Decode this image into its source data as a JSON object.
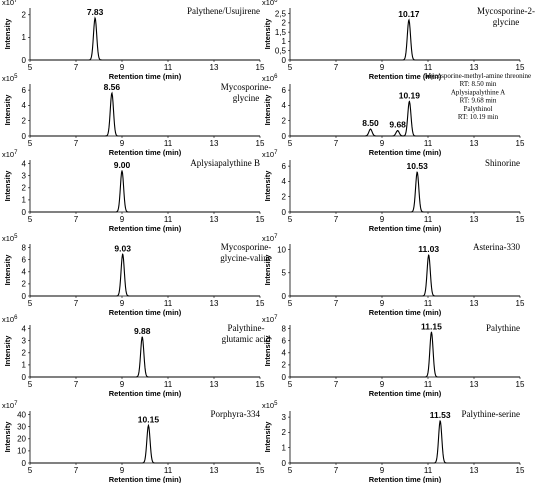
{
  "chart_data": [
    {
      "type": "line",
      "title": [
        "Palythene/Usujirene"
      ],
      "scale": "x10",
      "scale_exp": "7",
      "yticks": [
        "0",
        "1",
        "2"
      ],
      "ylim": [
        0,
        2.3
      ],
      "peaks": [
        {
          "rt": 7.83,
          "height": 1.85,
          "label": "7.83"
        }
      ],
      "xticks": [
        "5",
        "7",
        "9",
        "11",
        "13",
        "15"
      ],
      "xlim": [
        5,
        15
      ],
      "xlabel": "Retention time (min)",
      "ylabel": "Intensity"
    },
    {
      "type": "line",
      "title": [
        "Mycosporine-2-",
        "glycine"
      ],
      "scale": "x10",
      "scale_exp": "6",
      "yticks": [
        "0",
        "0,5",
        "1",
        "1,5",
        "2",
        "2,5"
      ],
      "ylim": [
        0,
        2.8
      ],
      "peaks": [
        {
          "rt": 10.17,
          "height": 2.15,
          "label": "10.17"
        }
      ],
      "xticks": [
        "5",
        "7",
        "9",
        "11",
        "13",
        "15"
      ],
      "xlim": [
        5,
        15
      ],
      "xlabel": "Retention time (min)",
      "ylabel": "Intensity"
    },
    {
      "type": "line",
      "title": [
        "Mycosporine-",
        "glycine"
      ],
      "scale": "x10",
      "scale_exp": "5",
      "yticks": [
        "0",
        "2",
        "4",
        "6"
      ],
      "ylim": [
        0,
        6.8
      ],
      "peaks": [
        {
          "rt": 8.56,
          "height": 5.6,
          "label": "8.56"
        }
      ],
      "xticks": [
        "5",
        "7",
        "9",
        "11",
        "13",
        "15"
      ],
      "xlim": [
        5,
        15
      ],
      "xlabel": "Retention time (min)",
      "ylabel": "Intensity"
    },
    {
      "type": "line",
      "title": [],
      "scale": "x10",
      "scale_exp": "6",
      "yticks": [
        "0",
        "2",
        "4",
        "6"
      ],
      "ylim": [
        0,
        6.8
      ],
      "peaks": [
        {
          "rt": 8.5,
          "height": 0.9,
          "label": "8.50"
        },
        {
          "rt": 9.68,
          "height": 0.7,
          "label": "9.68"
        },
        {
          "rt": 10.19,
          "height": 4.5,
          "label": "10.19"
        }
      ],
      "annotation": [
        "Mycosporine-methyl-amine threonine",
        "RT: 8.50 min",
        "Aplysiapalythine A",
        "RT: 9.68 min",
        "Palythinol",
        "RT: 10.19 min"
      ],
      "xticks": [
        "5",
        "7",
        "9",
        "11",
        "13",
        "15"
      ],
      "xlim": [
        5,
        15
      ],
      "xlabel": "Retention time (min)",
      "ylabel": "Intensity"
    },
    {
      "type": "line",
      "title": [
        "Aplysiapalythine B"
      ],
      "scale": "x10",
      "scale_exp": "7",
      "yticks": [
        "0",
        "1",
        "2",
        "3",
        "4"
      ],
      "ylim": [
        0,
        4.3
      ],
      "peaks": [
        {
          "rt": 9.0,
          "height": 3.4,
          "label": "9.00"
        }
      ],
      "xticks": [
        "5",
        "7",
        "9",
        "11",
        "13",
        "15"
      ],
      "xlim": [
        5,
        15
      ],
      "xlabel": "Retention time (min)",
      "ylabel": "Intensity"
    },
    {
      "type": "line",
      "title": [
        "Shinorine"
      ],
      "scale": "x10",
      "scale_exp": "7",
      "yticks": [
        "0",
        "2",
        "4",
        "6"
      ],
      "ylim": [
        0,
        6.8
      ],
      "peaks": [
        {
          "rt": 10.53,
          "height": 5.2,
          "label": "10.53"
        }
      ],
      "xticks": [
        "5",
        "7",
        "9",
        "11",
        "13",
        "15"
      ],
      "xlim": [
        5,
        15
      ],
      "xlabel": "Retention time (min)",
      "ylabel": "Intensity"
    },
    {
      "type": "line",
      "title": [
        "Mycosporine-",
        "glycine-valine"
      ],
      "scale": "x10",
      "scale_exp": "5",
      "yticks": [
        "0",
        "2",
        "4",
        "6",
        "8"
      ],
      "ylim": [
        0,
        8.6
      ],
      "peaks": [
        {
          "rt": 9.03,
          "height": 6.9,
          "label": "9.03"
        }
      ],
      "xticks": [
        "5",
        "7",
        "9",
        "11",
        "13",
        "15"
      ],
      "xlim": [
        5,
        15
      ],
      "xlabel": "Retention time (min)",
      "ylabel": "Intensity"
    },
    {
      "type": "line",
      "title": [
        "Asterina-330"
      ],
      "scale": "x10",
      "scale_exp": "7",
      "yticks": [
        "0",
        "5",
        "10"
      ],
      "ylim": [
        0,
        11.2
      ],
      "peaks": [
        {
          "rt": 11.03,
          "height": 8.8,
          "label": "11.03"
        }
      ],
      "xticks": [
        "5",
        "7",
        "9",
        "11",
        "13",
        "15"
      ],
      "xlim": [
        5,
        15
      ],
      "xlabel": "Retention time (min)",
      "ylabel": "Intensity"
    },
    {
      "type": "line",
      "title": [
        "Palythine-",
        "glutamic acid"
      ],
      "scale": "x10",
      "scale_exp": "6",
      "yticks": [
        "0",
        "1",
        "2",
        "3",
        "4"
      ],
      "ylim": [
        0,
        4.3
      ],
      "peaks": [
        {
          "rt": 9.88,
          "height": 3.3,
          "label": "9.88"
        }
      ],
      "xticks": [
        "5",
        "7",
        "9",
        "11",
        "13",
        "15"
      ],
      "xlim": [
        5,
        15
      ],
      "xlabel": "Retention time (min)",
      "ylabel": "Intensity"
    },
    {
      "type": "line",
      "title": [
        "Palythine"
      ],
      "scale": "x10",
      "scale_exp": "7",
      "yticks": [
        "0",
        "2",
        "4",
        "6",
        "8"
      ],
      "ylim": [
        0,
        8.6
      ],
      "peaks": [
        {
          "rt": 11.15,
          "height": 7.4,
          "label": "11.15"
        }
      ],
      "xticks": [
        "5",
        "7",
        "9",
        "11",
        "13",
        "15"
      ],
      "xlim": [
        5,
        15
      ],
      "xlabel": "Retention time (min)",
      "ylabel": "Intensity"
    },
    {
      "type": "line",
      "title": [
        "Porphyra-334"
      ],
      "scale": "x10",
      "scale_exp": "7",
      "yticks": [
        "0",
        "10",
        "20",
        "30",
        "40"
      ],
      "ylim": [
        0,
        43
      ],
      "peaks": [
        {
          "rt": 10.15,
          "height": 31,
          "label": "10.15"
        }
      ],
      "xticks": [
        "5",
        "7",
        "9",
        "11",
        "13",
        "15"
      ],
      "xlim": [
        5,
        15
      ],
      "xlabel": "Retention time (min)",
      "ylabel": "Intensity"
    },
    {
      "type": "line",
      "title": [
        "Palythine-serine"
      ],
      "scale": "x10",
      "scale_exp": "5",
      "yticks": [
        "0",
        "1",
        "2",
        "3"
      ],
      "ylim": [
        0,
        3.4
      ],
      "peaks": [
        {
          "rt": 11.53,
          "height": 2.75,
          "label": "11.53"
        }
      ],
      "xticks": [
        "5",
        "7",
        "9",
        "11",
        "13",
        "15"
      ],
      "xlim": [
        5,
        15
      ],
      "xlabel": "Retention time (min)",
      "ylabel": "Intensity"
    }
  ]
}
